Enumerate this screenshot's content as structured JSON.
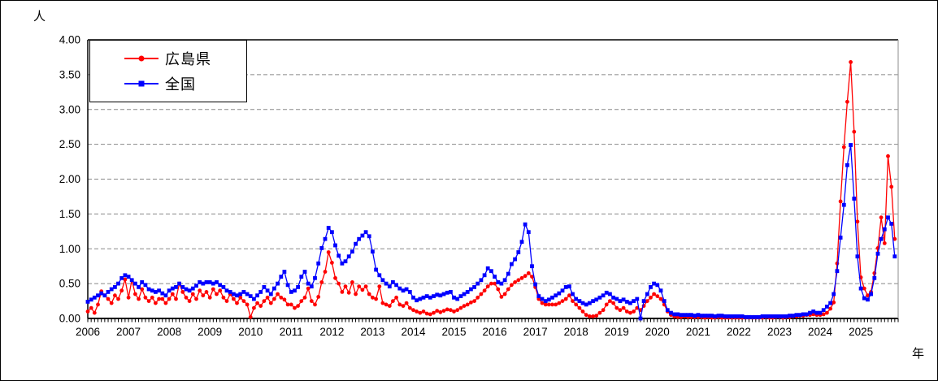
{
  "figure": {
    "y_axis_unit": "人",
    "x_axis_unit": "年",
    "background": "#ffffff",
    "border_color": "#000000",
    "gridline_color": "#888888"
  },
  "chart_data": {
    "type": "line",
    "title": "",
    "xlabel": "年",
    "ylabel": "人",
    "x_interval": "monthly",
    "x_start": "2006-01",
    "x_end": "2025-11",
    "ylim": [
      0,
      4
    ],
    "y_tick_step": 0.5,
    "y_tick_labels": [
      "4.00",
      "3.50",
      "3.00",
      "2.50",
      "2.00",
      "1.50",
      "1.00",
      "0.50",
      "0.00"
    ],
    "x_tick_labels": [
      "2006",
      "2007",
      "2008",
      "2009",
      "2010",
      "2011",
      "2012",
      "2013",
      "2014",
      "2015",
      "2016",
      "2017",
      "2018",
      "2019",
      "2020",
      "2021",
      "2022",
      "2023",
      "2024",
      "2025"
    ],
    "grid": "horizontal-dashed",
    "legend_position": "top-left-inside",
    "series": [
      {
        "name": "広島県",
        "color": "#ff0000",
        "marker": "circle",
        "values": [
          0.1,
          0.15,
          0.08,
          0.2,
          0.39,
          0.33,
          0.28,
          0.22,
          0.33,
          0.28,
          0.4,
          0.56,
          0.3,
          0.55,
          0.35,
          0.28,
          0.42,
          0.3,
          0.25,
          0.3,
          0.22,
          0.28,
          0.28,
          0.22,
          0.28,
          0.35,
          0.28,
          0.5,
          0.38,
          0.3,
          0.25,
          0.35,
          0.28,
          0.4,
          0.33,
          0.38,
          0.3,
          0.42,
          0.35,
          0.4,
          0.3,
          0.25,
          0.35,
          0.28,
          0.22,
          0.3,
          0.25,
          0.2,
          0.02,
          0.15,
          0.22,
          0.18,
          0.25,
          0.3,
          0.22,
          0.28,
          0.35,
          0.3,
          0.27,
          0.2,
          0.2,
          0.15,
          0.18,
          0.25,
          0.3,
          0.43,
          0.25,
          0.2,
          0.31,
          0.52,
          0.67,
          0.95,
          0.8,
          0.58,
          0.5,
          0.38,
          0.46,
          0.37,
          0.52,
          0.35,
          0.46,
          0.41,
          0.46,
          0.35,
          0.3,
          0.28,
          0.46,
          0.22,
          0.2,
          0.18,
          0.25,
          0.3,
          0.2,
          0.18,
          0.22,
          0.15,
          0.12,
          0.1,
          0.08,
          0.1,
          0.07,
          0.06,
          0.08,
          0.11,
          0.09,
          0.11,
          0.13,
          0.12,
          0.1,
          0.12,
          0.15,
          0.18,
          0.2,
          0.23,
          0.25,
          0.3,
          0.35,
          0.4,
          0.46,
          0.5,
          0.5,
          0.42,
          0.31,
          0.35,
          0.42,
          0.48,
          0.52,
          0.55,
          0.58,
          0.61,
          0.65,
          0.6,
          0.45,
          0.28,
          0.22,
          0.2,
          0.2,
          0.2,
          0.2,
          0.22,
          0.25,
          0.28,
          0.33,
          0.25,
          0.2,
          0.15,
          0.1,
          0.05,
          0.03,
          0.03,
          0.04,
          0.08,
          0.12,
          0.2,
          0.25,
          0.22,
          0.15,
          0.12,
          0.15,
          0.1,
          0.08,
          0.1,
          0.15,
          0.12,
          0.18,
          0.25,
          0.3,
          0.35,
          0.32,
          0.28,
          0.2,
          0.1,
          0.05,
          0.03,
          0.02,
          0.02,
          0.03,
          0.02,
          0.02,
          0.02,
          0.02,
          0.02,
          0.01,
          0.02,
          0.01,
          0.01,
          0.02,
          0.01,
          0.01,
          0.01,
          0.01,
          0.01,
          0.01,
          0.01,
          0.01,
          0.01,
          0.01,
          0.01,
          0.01,
          0.01,
          0.02,
          0.01,
          0.01,
          0.02,
          0.02,
          0.01,
          0.02,
          0.02,
          0.03,
          0.03,
          0.04,
          0.04,
          0.05,
          0.05,
          0.06,
          0.05,
          0.05,
          0.06,
          0.08,
          0.14,
          0.23,
          0.79,
          1.68,
          2.46,
          3.11,
          3.68,
          2.68,
          1.39,
          0.59,
          0.43,
          0.33,
          0.38,
          0.65,
          1.01,
          1.45,
          1.08,
          2.33,
          1.89,
          1.14,
          null
        ]
      },
      {
        "name": "全国",
        "color": "#0000ff",
        "marker": "square",
        "values": [
          0.24,
          0.27,
          0.3,
          0.33,
          0.36,
          0.33,
          0.38,
          0.42,
          0.45,
          0.5,
          0.58,
          0.62,
          0.6,
          0.55,
          0.5,
          0.45,
          0.52,
          0.48,
          0.42,
          0.4,
          0.38,
          0.4,
          0.36,
          0.33,
          0.4,
          0.43,
          0.45,
          0.5,
          0.45,
          0.42,
          0.4,
          0.43,
          0.47,
          0.52,
          0.5,
          0.52,
          0.52,
          0.5,
          0.52,
          0.48,
          0.45,
          0.4,
          0.38,
          0.35,
          0.33,
          0.35,
          0.38,
          0.35,
          0.32,
          0.28,
          0.33,
          0.38,
          0.45,
          0.4,
          0.35,
          0.43,
          0.5,
          0.6,
          0.67,
          0.48,
          0.38,
          0.4,
          0.45,
          0.6,
          0.67,
          0.5,
          0.46,
          0.58,
          0.79,
          1.01,
          1.14,
          1.3,
          1.24,
          1.05,
          0.9,
          0.79,
          0.82,
          0.89,
          0.96,
          1.07,
          1.14,
          1.19,
          1.24,
          1.18,
          0.96,
          0.7,
          0.62,
          0.55,
          0.5,
          0.46,
          0.52,
          0.48,
          0.43,
          0.4,
          0.42,
          0.38,
          0.3,
          0.26,
          0.28,
          0.3,
          0.32,
          0.3,
          0.32,
          0.34,
          0.33,
          0.35,
          0.37,
          0.38,
          0.3,
          0.28,
          0.32,
          0.35,
          0.38,
          0.42,
          0.45,
          0.5,
          0.55,
          0.62,
          0.72,
          0.68,
          0.6,
          0.52,
          0.5,
          0.55,
          0.64,
          0.78,
          0.85,
          0.95,
          1.1,
          1.35,
          1.24,
          0.75,
          0.49,
          0.32,
          0.28,
          0.25,
          0.27,
          0.3,
          0.33,
          0.36,
          0.4,
          0.45,
          0.46,
          0.35,
          0.28,
          0.25,
          0.22,
          0.2,
          0.22,
          0.25,
          0.27,
          0.3,
          0.33,
          0.37,
          0.35,
          0.3,
          0.28,
          0.25,
          0.27,
          0.24,
          0.22,
          0.25,
          0.28,
          0.0,
          0.25,
          0.35,
          0.45,
          0.5,
          0.48,
          0.4,
          0.25,
          0.12,
          0.08,
          0.06,
          0.06,
          0.05,
          0.05,
          0.05,
          0.05,
          0.04,
          0.05,
          0.04,
          0.04,
          0.04,
          0.04,
          0.03,
          0.04,
          0.04,
          0.03,
          0.03,
          0.03,
          0.03,
          0.03,
          0.03,
          0.02,
          0.02,
          0.02,
          0.02,
          0.02,
          0.03,
          0.03,
          0.03,
          0.03,
          0.03,
          0.03,
          0.03,
          0.03,
          0.04,
          0.04,
          0.05,
          0.05,
          0.06,
          0.06,
          0.08,
          0.1,
          0.08,
          0.08,
          0.12,
          0.17,
          0.22,
          0.35,
          0.68,
          1.16,
          1.63,
          2.2,
          2.49,
          1.72,
          0.89,
          0.43,
          0.29,
          0.27,
          0.35,
          0.58,
          0.93,
          1.14,
          1.28,
          1.45,
          1.36,
          0.89,
          null
        ]
      }
    ]
  }
}
